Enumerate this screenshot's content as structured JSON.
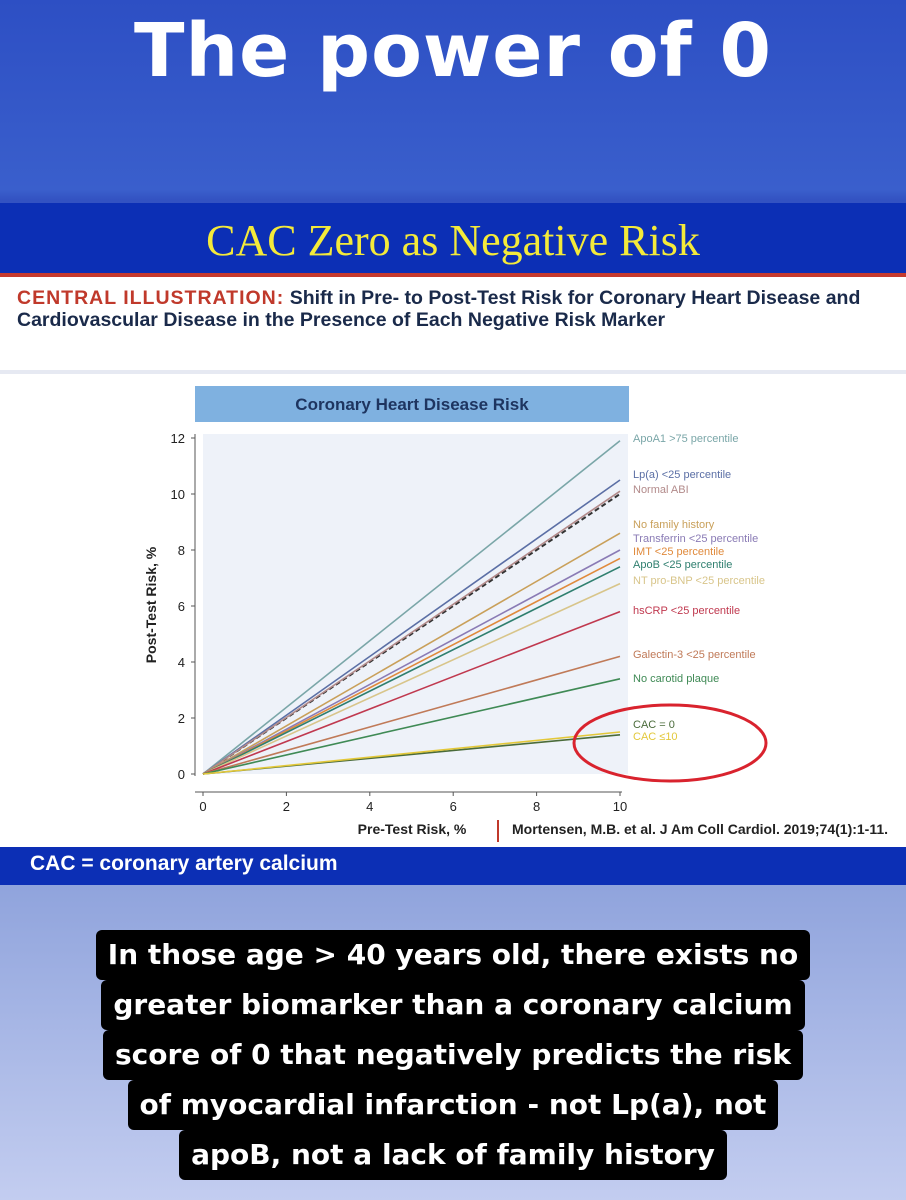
{
  "header": {
    "title": "The power of 0"
  },
  "slide": {
    "title": "CAC Zero as Negative Risk",
    "illustration_lead": "CENTRAL ILLUSTRATION:",
    "illustration_text": "Shift in Pre- to Post-Test Risk for Coronary Heart Disease and Cardiovascular Disease in the Presence of Each Negative Risk Marker",
    "footer": "CAC = coronary artery calcium"
  },
  "caption": {
    "lines": [
      "In those age > 40 years old, there exists no",
      "greater biomarker than a coronary calcium",
      "score of 0 that negatively predicts the risk",
      "of myocardial infarction - not Lp(a), not",
      "apoB, not a lack of family history"
    ]
  },
  "chart_data": {
    "type": "line",
    "title": "Coronary Heart Disease Risk",
    "xlabel": "Pre-Test Risk, %",
    "ylabel": "Post-Test Risk, %",
    "xlim": [
      0,
      10
    ],
    "ylim": [
      0,
      12
    ],
    "xticks": [
      "0",
      "2",
      "4",
      "6",
      "8",
      "10"
    ],
    "yticks": [
      "0",
      "2",
      "4",
      "6",
      "8",
      "10",
      "12"
    ],
    "citation": "Mortensen, M.B. et al. J Am Coll Cardiol. 2019;74(1):1-11.",
    "reference": {
      "x": [
        0,
        10
      ],
      "y": [
        0,
        10
      ],
      "color": "#333333",
      "dashed": true
    },
    "series": [
      {
        "name": "ApoA1 >75 percentile",
        "x": [
          0,
          10
        ],
        "y": [
          0,
          11.9
        ],
        "color": "#7aa6a8"
      },
      {
        "name": "Lp(a) <25 percentile",
        "x": [
          0,
          10
        ],
        "y": [
          0,
          10.5
        ],
        "color": "#5b6fa5"
      },
      {
        "name": "Normal ABI",
        "x": [
          0,
          10
        ],
        "y": [
          0,
          10.1
        ],
        "color": "#b28a8a"
      },
      {
        "name": "No family history",
        "x": [
          0,
          10
        ],
        "y": [
          0,
          8.6
        ],
        "color": "#c9a05a"
      },
      {
        "name": "Transferrin <25 percentile",
        "x": [
          0,
          10
        ],
        "y": [
          0,
          8.0
        ],
        "color": "#8a7bb5"
      },
      {
        "name": "IMT <25 percentile",
        "x": [
          0,
          10
        ],
        "y": [
          0,
          7.7
        ],
        "color": "#e08a3c"
      },
      {
        "name": "ApoB <25 percentile",
        "x": [
          0,
          10
        ],
        "y": [
          0,
          7.4
        ],
        "color": "#2f7f6f"
      },
      {
        "name": "NT pro-BNP <25 percentile",
        "x": [
          0,
          10
        ],
        "y": [
          0,
          6.8
        ],
        "color": "#d8c58a"
      },
      {
        "name": "hsCRP <25 percentile",
        "x": [
          0,
          10
        ],
        "y": [
          0,
          5.8
        ],
        "color": "#c0394f"
      },
      {
        "name": "Galectin-3 <25 percentile",
        "x": [
          0,
          10
        ],
        "y": [
          0,
          4.2
        ],
        "color": "#c07a58"
      },
      {
        "name": "No carotid plaque",
        "x": [
          0,
          10
        ],
        "y": [
          0,
          3.4
        ],
        "color": "#3f8a55"
      },
      {
        "name": "CAC = 0",
        "x": [
          0,
          10
        ],
        "y": [
          0,
          1.4
        ],
        "color": "#4a6b3a"
      },
      {
        "name": "CAC ≤10",
        "x": [
          0,
          10
        ],
        "y": [
          0,
          1.5
        ],
        "color": "#e3c83a"
      }
    ]
  }
}
